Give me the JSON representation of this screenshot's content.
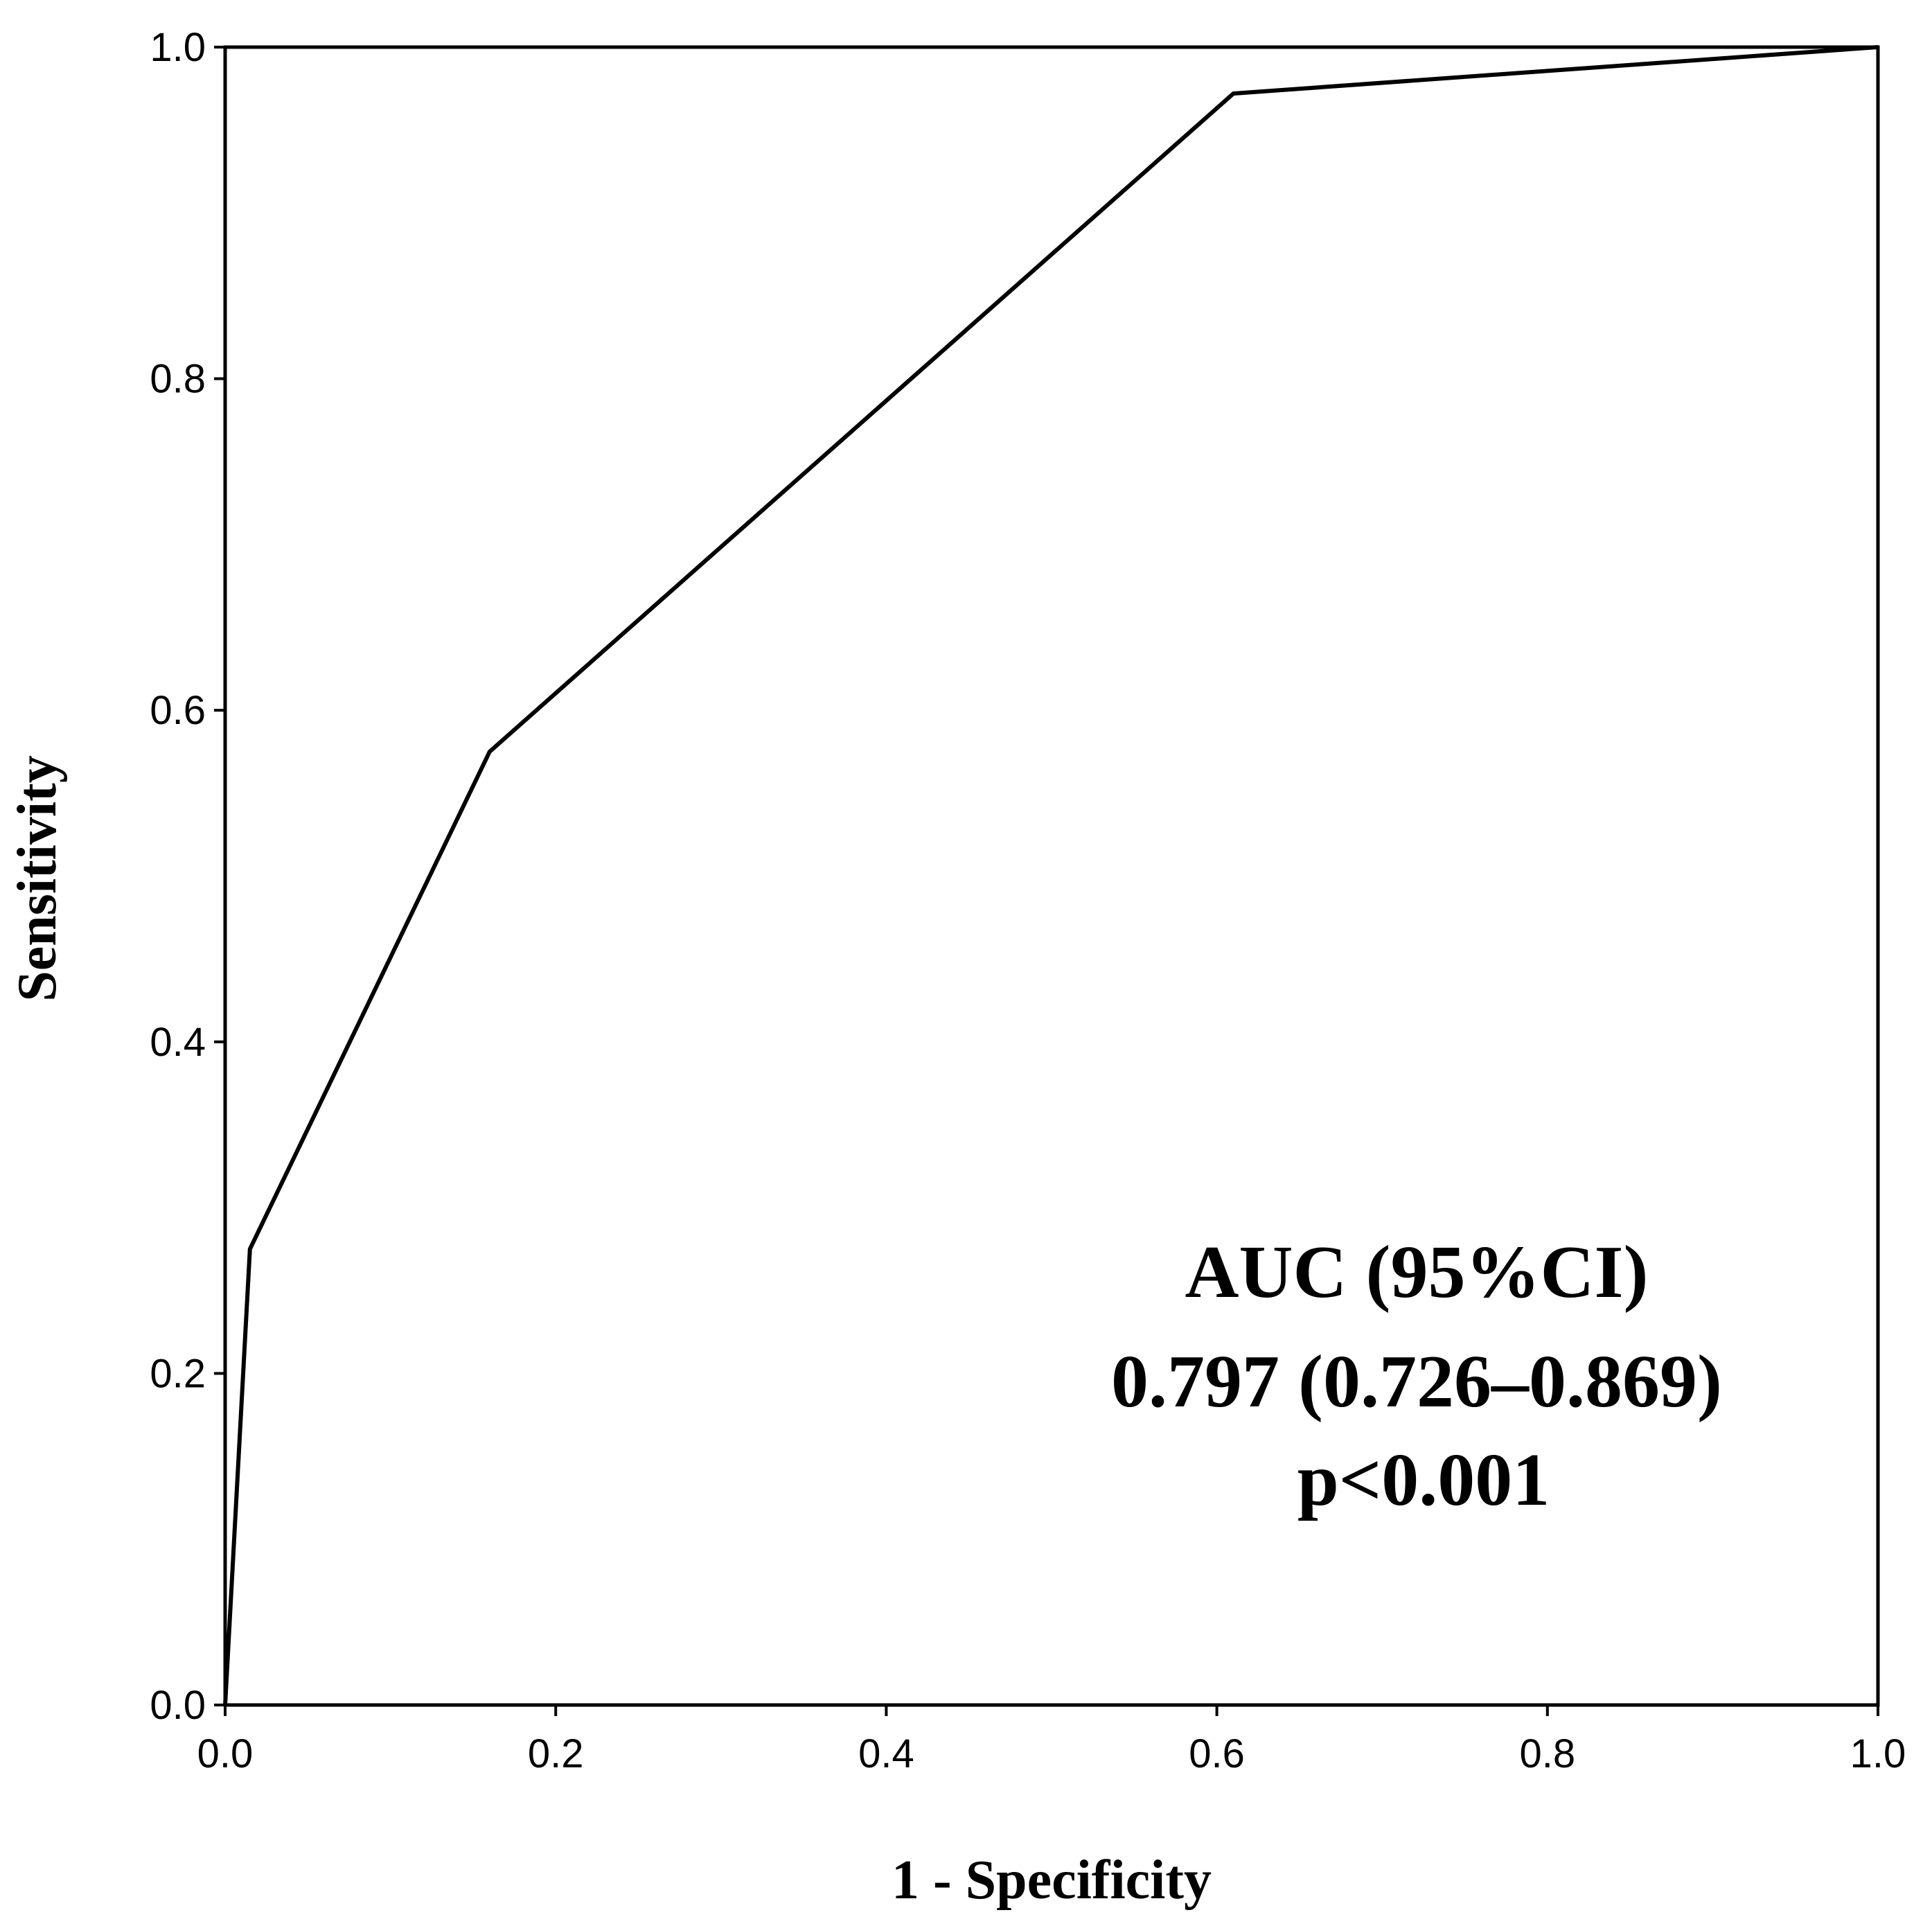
{
  "chart_data": {
    "type": "line",
    "title": "",
    "xlabel": "1 - Specificity",
    "ylabel": "Sensitivity",
    "xlim": [
      0.0,
      1.0
    ],
    "ylim": [
      0.0,
      1.0
    ],
    "xticks": [
      "0.0",
      "0.2",
      "0.4",
      "0.6",
      "0.8",
      "1.0"
    ],
    "yticks": [
      "0.0",
      "0.2",
      "0.4",
      "0.6",
      "0.8",
      "1.0"
    ],
    "grid": false,
    "series": [
      {
        "x": [
          0.0,
          0.015,
          0.16,
          0.61,
          1.0
        ],
        "y": [
          0.0,
          0.275,
          0.575,
          0.972,
          1.0
        ],
        "color": "#000000"
      }
    ],
    "annotations": {
      "line1": "AUC (95%CI)",
      "line2": "0.797 (0.726–0.869)",
      "line3": "p<0.001"
    }
  }
}
